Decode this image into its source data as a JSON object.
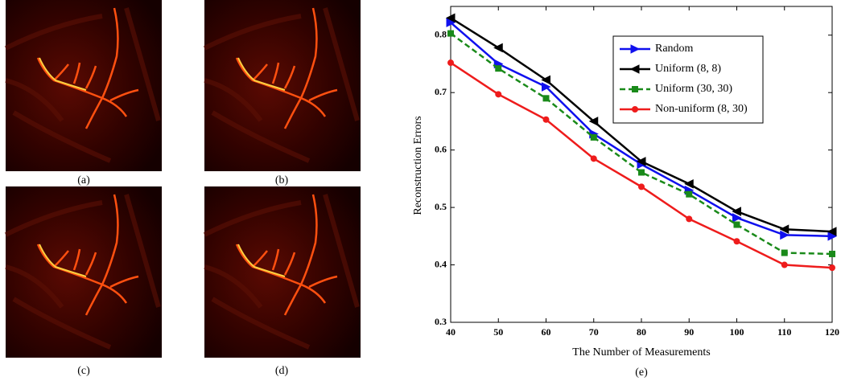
{
  "panels": [
    "(a)",
    "(b)",
    "(c)",
    "(d)"
  ],
  "chart_data": {
    "type": "line",
    "caption": "(e)",
    "x_label": "The Number of Measurements",
    "y_label": "Reconstruction Errors",
    "x": [
      40,
      50,
      60,
      70,
      80,
      90,
      100,
      110,
      120
    ],
    "xlim": [
      40,
      120
    ],
    "xticks": [
      40,
      50,
      60,
      70,
      80,
      90,
      100,
      110,
      120
    ],
    "ylim": [
      0.3,
      0.85
    ],
    "yticks": [
      0.3,
      0.4,
      0.5,
      0.6,
      0.7,
      0.8
    ],
    "legend": "upper right",
    "series": [
      {
        "name": "Random",
        "color": "#1010ee",
        "marker": "triangle-right",
        "linestyle": "solid",
        "values": [
          0.822,
          0.75,
          0.71,
          0.628,
          0.575,
          0.53,
          0.482,
          0.452,
          0.45
        ]
      },
      {
        "name": "Uniform (8, 8)",
        "color": "#000000",
        "marker": "triangle-left",
        "linestyle": "solid",
        "values": [
          0.83,
          0.778,
          0.722,
          0.65,
          0.58,
          0.541,
          0.493,
          0.462,
          0.458
        ]
      },
      {
        "name": "Uniform (30, 30)",
        "color": "#1a8a1a",
        "marker": "square",
        "linestyle": "dashed",
        "values": [
          0.803,
          0.742,
          0.69,
          0.622,
          0.561,
          0.523,
          0.47,
          0.421,
          0.419
        ]
      },
      {
        "name": "Non-uniform (8, 30)",
        "color": "#ee1c1c",
        "marker": "circle",
        "linestyle": "solid",
        "values": [
          0.752,
          0.697,
          0.653,
          0.585,
          0.536,
          0.48,
          0.441,
          0.4,
          0.395
        ]
      }
    ]
  }
}
